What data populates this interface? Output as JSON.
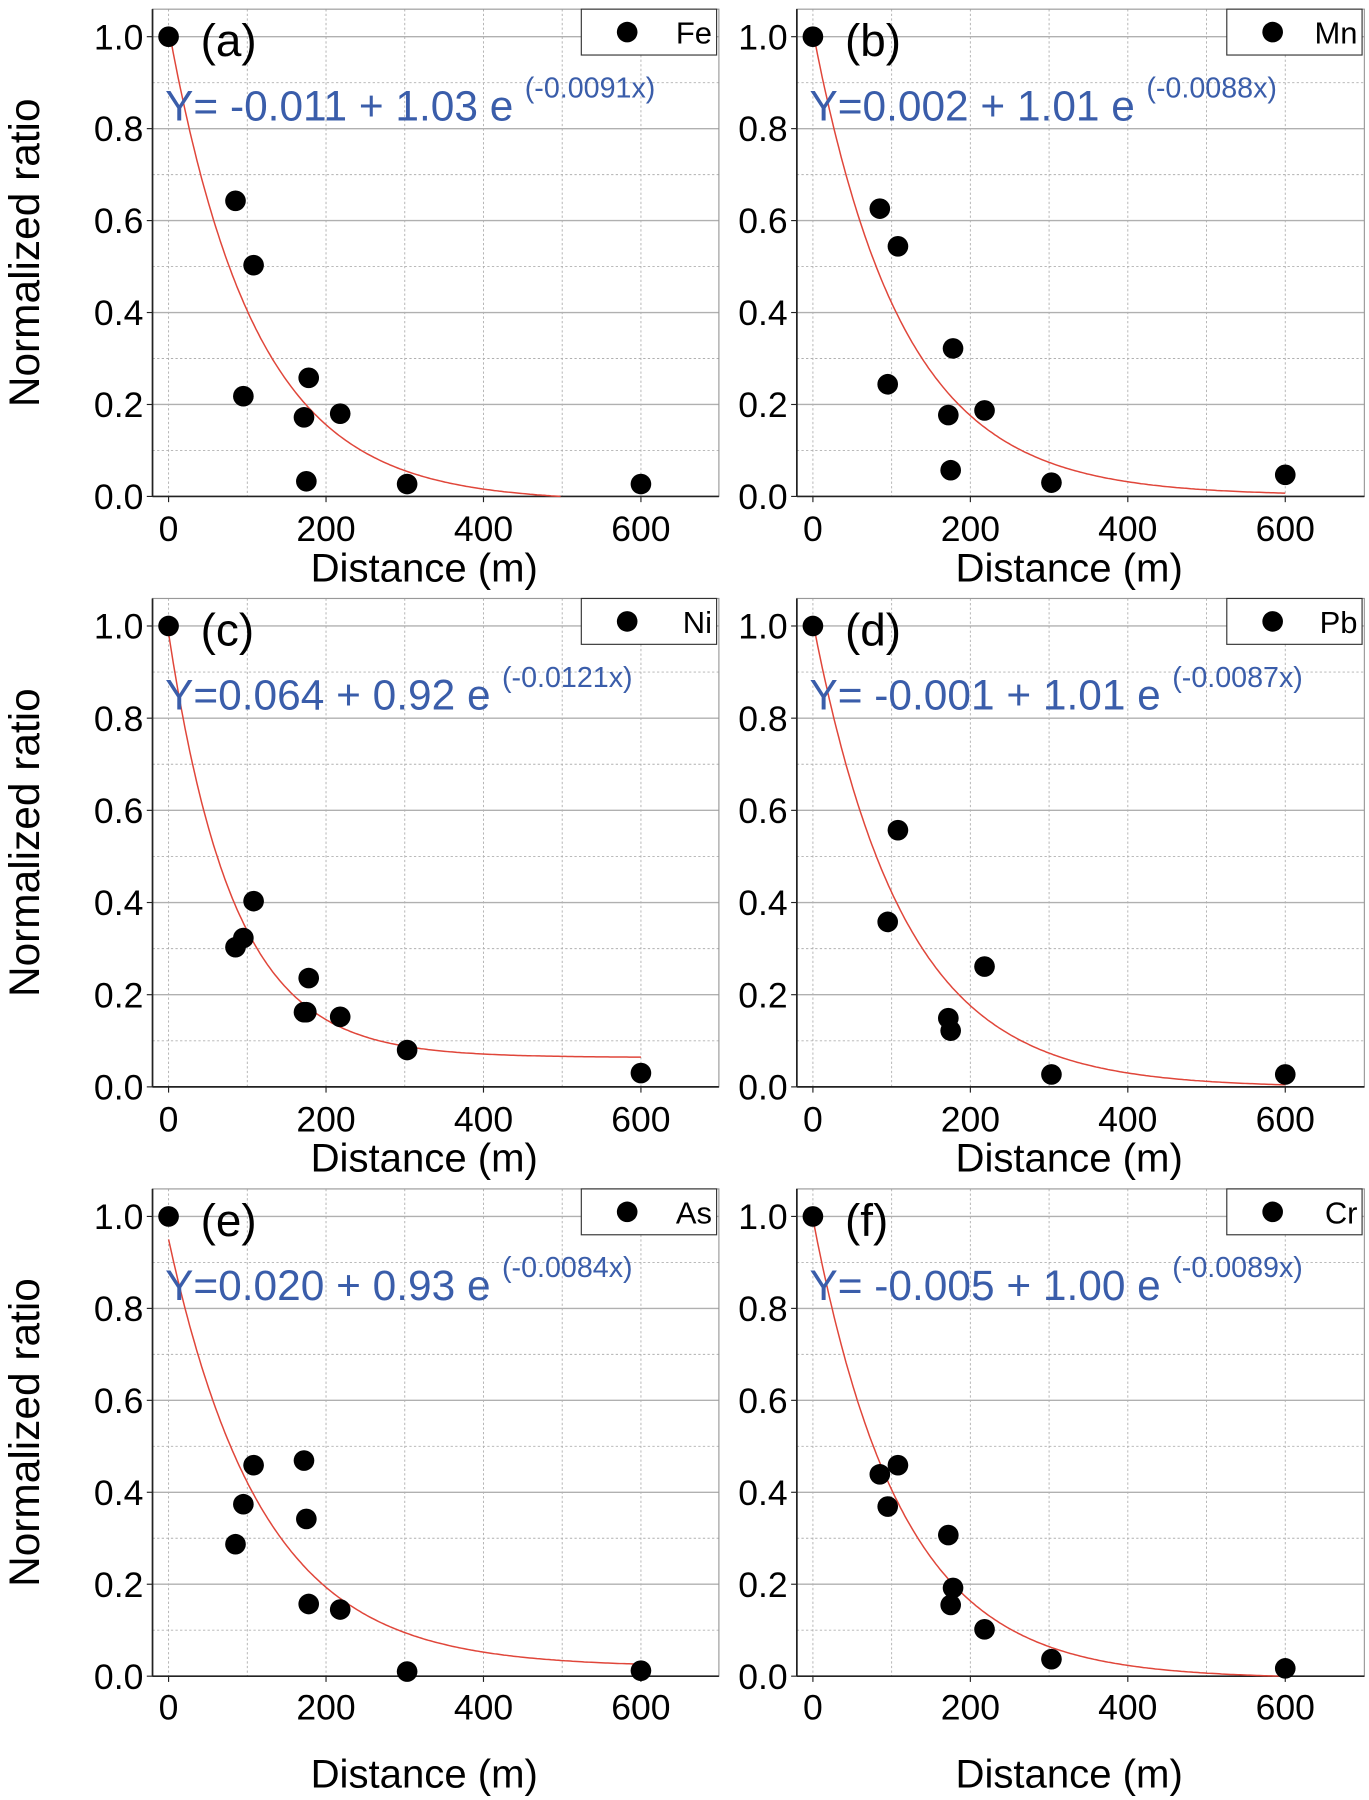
{
  "chart_data": [
    {
      "type": "scatter",
      "panel_label": "(a)",
      "legend": "Fe",
      "equation": "Y= -0.011 + 1.03 e",
      "exponent": "(-0.0091x)",
      "fit": {
        "a": -0.011,
        "b": 1.03,
        "k": -0.0091
      },
      "x": [
        0,
        85,
        95,
        108,
        172,
        175,
        178,
        218,
        303,
        600
      ],
      "y": [
        1.0,
        0.643,
        0.218,
        0.503,
        0.172,
        0.033,
        0.258,
        0.18,
        0.027,
        0.027
      ],
      "xlabel": "Distance (m)",
      "ylabel": "Normalized ratio"
    },
    {
      "type": "scatter",
      "panel_label": "(b)",
      "legend": "Mn",
      "equation": "Y=0.002 + 1.01 e",
      "exponent": "(-0.0088x)",
      "fit": {
        "a": 0.002,
        "b": 1.01,
        "k": -0.0088
      },
      "x": [
        0,
        85,
        95,
        108,
        172,
        175,
        178,
        218,
        303,
        600
      ],
      "y": [
        1.0,
        0.626,
        0.244,
        0.544,
        0.177,
        0.057,
        0.322,
        0.187,
        0.03,
        0.047
      ],
      "xlabel": "Distance (m)",
      "ylabel": ""
    },
    {
      "type": "scatter",
      "panel_label": "(c)",
      "legend": "Ni",
      "equation": "Y=0.064 + 0.92 e",
      "exponent": "(-0.0121x)",
      "fit": {
        "a": 0.064,
        "b": 0.92,
        "k": -0.0121
      },
      "x": [
        0,
        85,
        95,
        108,
        172,
        175,
        178,
        218,
        303,
        600
      ],
      "y": [
        1.0,
        0.303,
        0.323,
        0.403,
        0.162,
        0.162,
        0.236,
        0.152,
        0.08,
        0.03
      ],
      "xlabel": "Distance (m)",
      "ylabel": "Normalized ratio"
    },
    {
      "type": "scatter",
      "panel_label": "(d)",
      "legend": "Pb",
      "equation": "Y= -0.001 + 1.01 e",
      "exponent": "(-0.0087x)",
      "fit": {
        "a": -0.001,
        "b": 1.01,
        "k": -0.0087
      },
      "x": [
        0,
        95,
        108,
        172,
        175,
        218,
        303,
        600
      ],
      "y": [
        1.0,
        0.358,
        0.557,
        0.149,
        0.122,
        0.261,
        0.027,
        0.027
      ],
      "xlabel": "Distance (m)",
      "ylabel": ""
    },
    {
      "type": "scatter",
      "panel_label": "(e)",
      "legend": "As",
      "equation": "Y=0.020 + 0.93 e",
      "exponent": "(-0.0084x)",
      "fit": {
        "a": 0.02,
        "b": 0.93,
        "k": -0.0084
      },
      "x": [
        0,
        85,
        95,
        108,
        172,
        175,
        178,
        218,
        303,
        600
      ],
      "y": [
        1.0,
        0.287,
        0.374,
        0.459,
        0.469,
        0.342,
        0.157,
        0.145,
        0.01,
        0.012
      ],
      "xlabel": "Distance (m)",
      "ylabel": "Normalized ratio"
    },
    {
      "type": "scatter",
      "panel_label": "(f)",
      "legend": "Cr",
      "equation": "Y= -0.005 + 1.00 e",
      "exponent": "(-0.0089x)",
      "fit": {
        "a": -0.005,
        "b": 1.0,
        "k": -0.0089
      },
      "x": [
        0,
        85,
        95,
        108,
        172,
        175,
        178,
        218,
        303,
        600
      ],
      "y": [
        1.0,
        0.439,
        0.369,
        0.459,
        0.307,
        0.155,
        0.192,
        0.102,
        0.037,
        0.017
      ],
      "xlabel": "Distance (m)",
      "ylabel": ""
    }
  ],
  "axes": {
    "xlim": [
      -20,
      700
    ],
    "ylim": [
      0,
      1.05
    ],
    "xticks": [
      "0",
      "200",
      "400",
      "600"
    ],
    "yticks": [
      "0.0",
      "0.2",
      "0.4",
      "0.6",
      "0.8",
      "1.0"
    ],
    "grid": true,
    "legend_position": "top-right"
  },
  "colors": {
    "fit": "#e0463a",
    "equation": "#3a5daa",
    "marker": "#000000",
    "grid": "#b0b0b0"
  }
}
